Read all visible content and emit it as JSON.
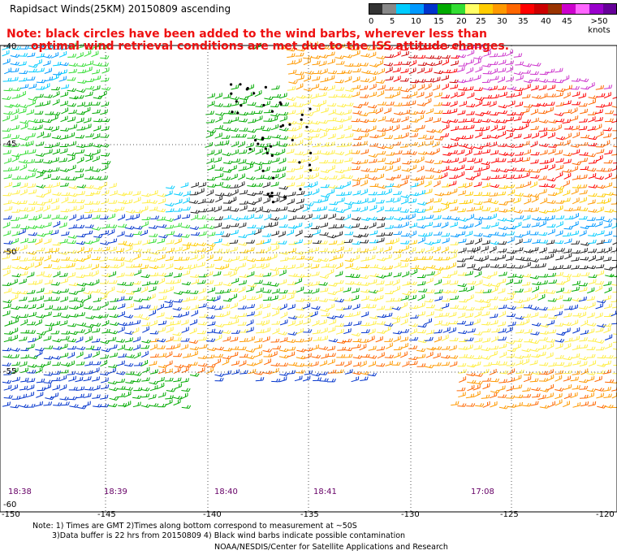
{
  "title": "Rapidsact Winds(25KM) 20150809 ascending",
  "note": {
    "line1": "Note: black circles have been added to the wind barbs, wherever less than",
    "line2": "optimal wind retrieval conditions are met due to the ISS attitude changes."
  },
  "legend": {
    "labels": [
      "0",
      "5",
      "10",
      "15",
      "20",
      "25",
      "30",
      "35",
      "40",
      "45",
      ">50 knots"
    ],
    "colors": [
      "#333333",
      "#888888",
      "#00ccff",
      "#0099ff",
      "#0033cc",
      "#00aa00",
      "#33dd33",
      "#ffff66",
      "#ffcc00",
      "#ff9900",
      "#ff6600",
      "#ff0000",
      "#cc0000",
      "#993300",
      "#cc00cc",
      "#ff66ff",
      "#9900cc",
      "#660099"
    ]
  },
  "lat_labels": [
    "-40",
    "-45",
    "-50",
    "-55",
    "-60"
  ],
  "lon_labels": [
    "-150",
    "-145",
    "-140",
    "-135",
    "-130",
    "-125",
    "-120"
  ],
  "time_labels": [
    "18:38",
    "18:39",
    "18:40",
    "18:41",
    "17:08"
  ],
  "footer": {
    "line1": "Note: 1) Times are GMT 2)Times along bottom correspond to measurement at ~50S",
    "line2": "3)Data buffer is 22 hrs from 20150809 4) Black wind barbs indicate possible contamination",
    "line3": "NOAA/NESDIS/Center for Satellite Applications and Research"
  }
}
